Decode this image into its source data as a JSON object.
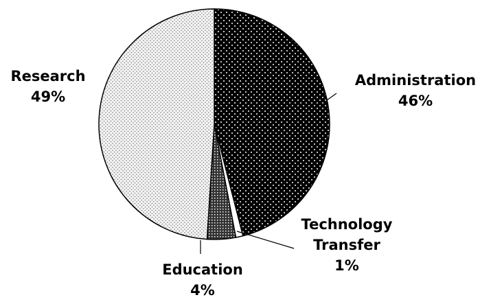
{
  "chart_data": {
    "type": "pie",
    "categories": [
      "Administration",
      "Technology Transfer",
      "Education",
      "Research"
    ],
    "values": [
      46,
      1,
      4,
      49
    ],
    "value_labels": [
      "46%",
      "1%",
      "4%",
      "49%"
    ],
    "colors": [
      "#000000",
      "#ffffff",
      "#333333",
      "#f4f4f4"
    ]
  }
}
